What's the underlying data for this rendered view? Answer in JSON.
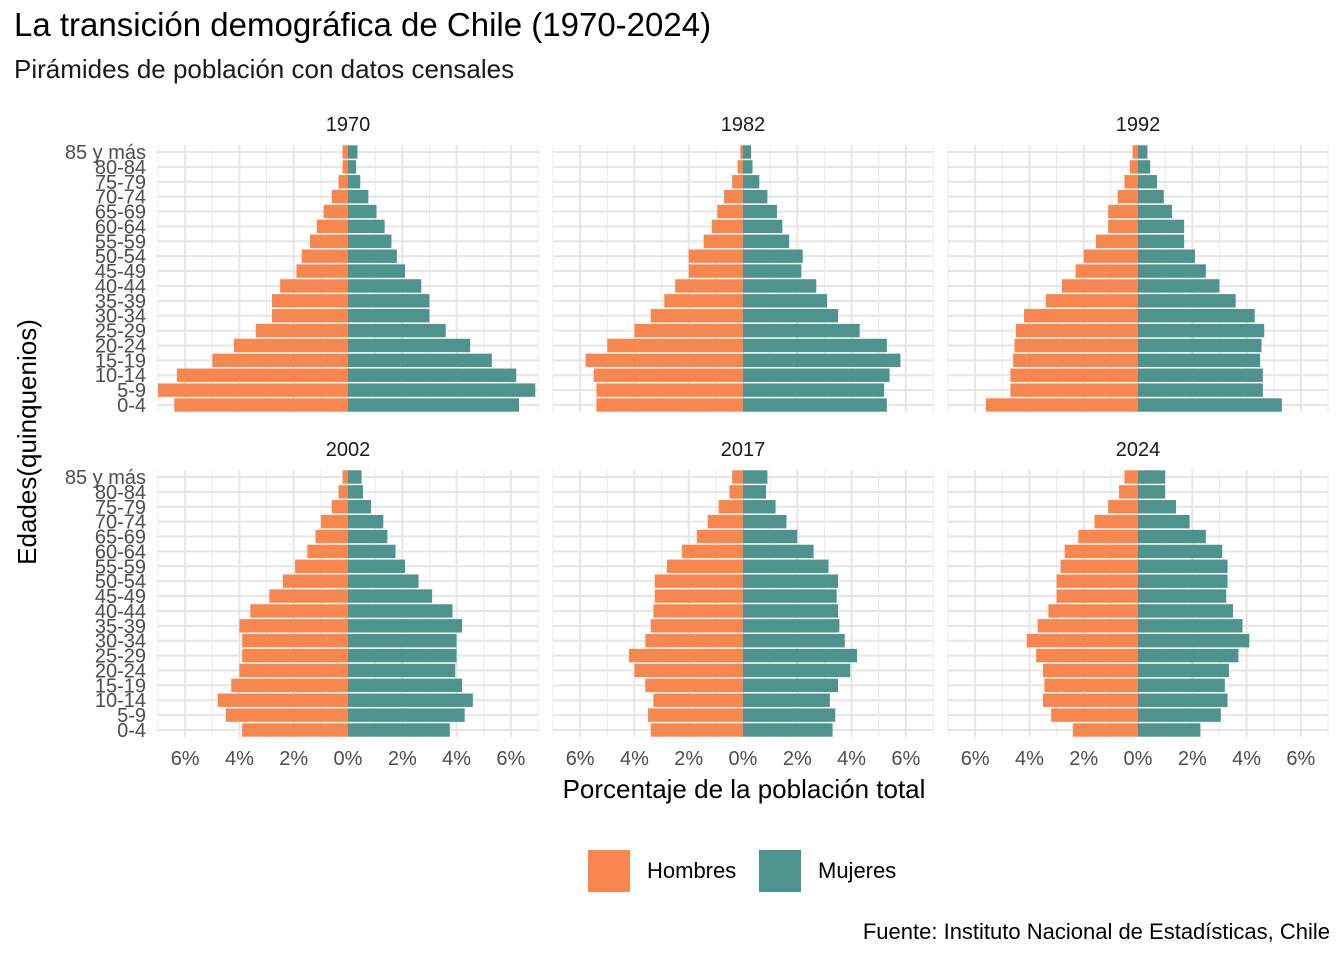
{
  "chart_data": {
    "type": "bar",
    "orientation": "horizontal",
    "layout": "population pyramid facets, 2 rows x 3 columns",
    "title": "La transición demográfica de Chile (1970-2024)",
    "subtitle": "Pirámides de población con datos censales",
    "xlabel": "Porcentaje de la población total",
    "ylabel": "Edades(quinquenios)",
    "caption": "Fuente: Instituto Nacional de Estadísticas, Chile",
    "categories": [
      "0-4",
      "5-9",
      "10-14",
      "15-19",
      "20-24",
      "25-29",
      "30-34",
      "35-39",
      "40-44",
      "45-49",
      "50-54",
      "55-59",
      "60-64",
      "65-69",
      "70-74",
      "75-79",
      "80-84",
      "85 y más"
    ],
    "xlim": [
      -7,
      7
    ],
    "xticks": [
      -6,
      -4,
      -2,
      0,
      2,
      4,
      6
    ],
    "xtick_labels": [
      "6%",
      "4%",
      "2%",
      "0%",
      "2%",
      "4%",
      "6%"
    ],
    "grid": true,
    "legend_position": "bottom",
    "series_meta": [
      {
        "name": "Hombres",
        "color": "#f8874f"
      },
      {
        "name": "Mujeres",
        "color": "#4e938e"
      }
    ],
    "panels": [
      {
        "label": "1970",
        "hombres": [
          6.4,
          7.0,
          6.3,
          5.0,
          4.2,
          3.4,
          2.8,
          2.8,
          2.5,
          1.9,
          1.7,
          1.4,
          1.15,
          0.9,
          0.6,
          0.35,
          0.2,
          0.2
        ],
        "mujeres": [
          6.3,
          6.9,
          6.2,
          5.3,
          4.5,
          3.6,
          3.0,
          3.0,
          2.7,
          2.1,
          1.8,
          1.6,
          1.35,
          1.05,
          0.75,
          0.45,
          0.3,
          0.35
        ]
      },
      {
        "label": "1982",
        "hombres": [
          5.4,
          5.4,
          5.5,
          5.8,
          5.0,
          4.0,
          3.4,
          2.9,
          2.5,
          2.0,
          2.0,
          1.45,
          1.15,
          0.95,
          0.7,
          0.4,
          0.2,
          0.1
        ],
        "mujeres": [
          5.3,
          5.2,
          5.4,
          5.8,
          5.3,
          4.3,
          3.5,
          3.1,
          2.7,
          2.15,
          2.2,
          1.7,
          1.45,
          1.25,
          0.9,
          0.6,
          0.35,
          0.3
        ]
      },
      {
        "label": "1992",
        "hombres": [
          5.6,
          4.7,
          4.7,
          4.6,
          4.55,
          4.5,
          4.2,
          3.4,
          2.8,
          2.3,
          2.0,
          1.55,
          1.1,
          1.1,
          0.75,
          0.5,
          0.3,
          0.2
        ],
        "mujeres": [
          5.3,
          4.6,
          4.6,
          4.5,
          4.55,
          4.65,
          4.3,
          3.6,
          3.0,
          2.5,
          2.1,
          1.7,
          1.7,
          1.25,
          0.95,
          0.7,
          0.45,
          0.35
        ]
      },
      {
        "label": "2002",
        "hombres": [
          3.9,
          4.5,
          4.8,
          4.3,
          4.0,
          3.9,
          3.9,
          4.0,
          3.6,
          2.9,
          2.4,
          1.95,
          1.5,
          1.2,
          1.0,
          0.6,
          0.35,
          0.2
        ],
        "mujeres": [
          3.75,
          4.3,
          4.6,
          4.2,
          3.95,
          4.0,
          4.0,
          4.2,
          3.85,
          3.1,
          2.6,
          2.1,
          1.75,
          1.45,
          1.3,
          0.85,
          0.55,
          0.5
        ]
      },
      {
        "label": "2017",
        "hombres": [
          3.4,
          3.5,
          3.3,
          3.6,
          4.0,
          4.2,
          3.6,
          3.4,
          3.3,
          3.25,
          3.25,
          2.8,
          2.25,
          1.7,
          1.3,
          0.9,
          0.5,
          0.4
        ],
        "mujeres": [
          3.3,
          3.4,
          3.2,
          3.5,
          3.95,
          4.2,
          3.75,
          3.55,
          3.5,
          3.45,
          3.5,
          3.15,
          2.6,
          2.0,
          1.6,
          1.2,
          0.85,
          0.9
        ]
      },
      {
        "label": "2024",
        "hombres": [
          2.4,
          3.2,
          3.5,
          3.45,
          3.5,
          3.75,
          4.1,
          3.7,
          3.3,
          3.0,
          3.0,
          2.85,
          2.7,
          2.2,
          1.6,
          1.1,
          0.7,
          0.5
        ],
        "mujeres": [
          2.3,
          3.05,
          3.3,
          3.2,
          3.35,
          3.7,
          4.1,
          3.85,
          3.5,
          3.25,
          3.3,
          3.3,
          3.1,
          2.5,
          1.9,
          1.4,
          1.0,
          1.0
        ]
      }
    ]
  }
}
